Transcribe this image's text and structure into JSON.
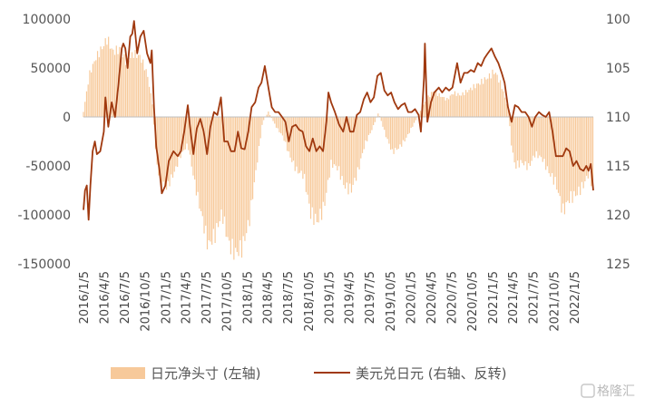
{
  "chart_data": {
    "type": "bar+line",
    "title": "",
    "legend": {
      "placement": "bottom",
      "items": [
        {
          "name": "日元净头寸 (左轴)",
          "kind": "bar",
          "color": "#F7C99A"
        },
        {
          "name": "美元兑日元 (右轴、反转)",
          "kind": "line",
          "color": "#A0390F"
        }
      ]
    },
    "left_axis": {
      "range": [
        -150000,
        100000
      ],
      "ticks": [
        100000,
        50000,
        0,
        -50000,
        -100000,
        -150000
      ],
      "tick_labels": [
        "100000",
        "50000",
        "0",
        "-50000",
        "-100000",
        "-150000"
      ]
    },
    "right_axis": {
      "inverted": true,
      "range": [
        100,
        125
      ],
      "ticks": [
        100,
        105,
        110,
        115,
        120,
        125
      ],
      "tick_labels": [
        "100",
        "105",
        "110",
        "115",
        "120",
        "125"
      ]
    },
    "x_axis": {
      "start": "2016-01-05",
      "end": "2022-03-31",
      "tick_labels": [
        "2016/1/5",
        "2016/4/5",
        "2016/7/5",
        "2016/10/5",
        "2017/1/5",
        "2017/4/5",
        "2017/7/5",
        "2017/10/5",
        "2018/1/5",
        "2018/4/5",
        "2018/7/5",
        "2018/10/5",
        "2019/1/5",
        "2019/4/5",
        "2019/7/5",
        "2019/10/5",
        "2020/1/5",
        "2020/4/5",
        "2020/7/5",
        "2020/10/5",
        "2021/1/5",
        "2021/4/5",
        "2021/7/5",
        "2021/10/5",
        "2022/1/5"
      ]
    },
    "series": [
      {
        "name": "日元净头寸 (左轴)",
        "axis": "left",
        "kind": "bar",
        "points": [
          [
            "2016-01-05",
            5000
          ],
          [
            "2016-02-01",
            40000
          ],
          [
            "2016-03-01",
            55000
          ],
          [
            "2016-04-01",
            65000
          ],
          [
            "2016-04-20",
            72000
          ],
          [
            "2016-05-15",
            60000
          ],
          [
            "2016-06-15",
            62000
          ],
          [
            "2016-07-15",
            50000
          ],
          [
            "2016-08-15",
            58000
          ],
          [
            "2016-09-15",
            55000
          ],
          [
            "2016-10-15",
            40000
          ],
          [
            "2016-11-10",
            10000
          ],
          [
            "2016-11-25",
            -40000
          ],
          [
            "2016-12-15",
            -60000
          ],
          [
            "2017-01-10",
            -65000
          ],
          [
            "2017-02-15",
            -50000
          ],
          [
            "2017-03-15",
            -35000
          ],
          [
            "2017-04-15",
            -25000
          ],
          [
            "2017-05-15",
            -60000
          ],
          [
            "2017-06-15",
            -90000
          ],
          [
            "2017-07-15",
            -120000
          ],
          [
            "2017-08-15",
            -110000
          ],
          [
            "2017-09-15",
            -90000
          ],
          [
            "2017-10-15",
            -120000
          ],
          [
            "2017-11-15",
            -130000
          ],
          [
            "2017-12-15",
            -125000
          ],
          [
            "2018-01-15",
            -100000
          ],
          [
            "2018-02-15",
            -50000
          ],
          [
            "2018-03-15",
            -5000
          ],
          [
            "2018-04-10",
            5000
          ],
          [
            "2018-05-15",
            -10000
          ],
          [
            "2018-06-15",
            -20000
          ],
          [
            "2018-07-15",
            -40000
          ],
          [
            "2018-08-15",
            -55000
          ],
          [
            "2018-09-15",
            -60000
          ],
          [
            "2018-10-15",
            -100000
          ],
          [
            "2018-11-15",
            -110000
          ],
          [
            "2018-12-15",
            -95000
          ],
          [
            "2019-01-15",
            -50000
          ],
          [
            "2019-02-15",
            -55000
          ],
          [
            "2019-03-15",
            -75000
          ],
          [
            "2019-04-15",
            -80000
          ],
          [
            "2019-05-15",
            -60000
          ],
          [
            "2019-06-15",
            -30000
          ],
          [
            "2019-07-15",
            -15000
          ],
          [
            "2019-08-15",
            5000
          ],
          [
            "2019-09-15",
            -20000
          ],
          [
            "2019-10-15",
            -40000
          ],
          [
            "2019-11-15",
            -35000
          ],
          [
            "2019-12-15",
            -25000
          ],
          [
            "2020-01-15",
            -10000
          ],
          [
            "2020-02-15",
            5000
          ],
          [
            "2020-03-15",
            20000
          ],
          [
            "2020-04-15",
            30000
          ],
          [
            "2020-05-15",
            25000
          ],
          [
            "2020-06-15",
            20000
          ],
          [
            "2020-07-15",
            28000
          ],
          [
            "2020-08-15",
            25000
          ],
          [
            "2020-09-15",
            30000
          ],
          [
            "2020-10-15",
            35000
          ],
          [
            "2020-11-15",
            40000
          ],
          [
            "2020-12-15",
            45000
          ],
          [
            "2021-01-15",
            52000
          ],
          [
            "2021-02-15",
            35000
          ],
          [
            "2021-03-15",
            10000
          ],
          [
            "2021-03-30",
            -30000
          ],
          [
            "2021-04-15",
            -55000
          ],
          [
            "2021-05-15",
            -50000
          ],
          [
            "2021-06-15",
            -55000
          ],
          [
            "2021-07-15",
            -40000
          ],
          [
            "2021-08-15",
            -45000
          ],
          [
            "2021-09-15",
            -60000
          ],
          [
            "2021-10-15",
            -70000
          ],
          [
            "2021-11-15",
            -100000
          ],
          [
            "2021-12-15",
            -85000
          ],
          [
            "2022-01-15",
            -80000
          ],
          [
            "2022-02-15",
            -70000
          ],
          [
            "2022-03-15",
            -55000
          ],
          [
            "2022-03-31",
            -80000
          ]
        ]
      },
      {
        "name": "美元兑日元 (右轴、反转)",
        "axis": "right",
        "kind": "line",
        "points": [
          [
            "2016-01-05",
            119.5
          ],
          [
            "2016-01-12",
            117.5
          ],
          [
            "2016-01-20",
            117
          ],
          [
            "2016-01-28",
            120.5
          ],
          [
            "2016-02-05",
            117.0
          ],
          [
            "2016-02-15",
            113.5
          ],
          [
            "2016-02-25",
            112.5
          ],
          [
            "2016-03-05",
            113.8
          ],
          [
            "2016-03-20",
            113.5
          ],
          [
            "2016-04-05",
            111.5
          ],
          [
            "2016-04-12",
            108
          ],
          [
            "2016-04-25",
            111
          ],
          [
            "2016-05-10",
            108.5
          ],
          [
            "2016-05-25",
            110
          ],
          [
            "2016-06-10",
            106.5
          ],
          [
            "2016-06-24",
            103
          ],
          [
            "2016-07-01",
            102.5
          ],
          [
            "2016-07-10",
            103
          ],
          [
            "2016-07-20",
            105
          ],
          [
            "2016-08-01",
            101.8
          ],
          [
            "2016-08-10",
            101.5
          ],
          [
            "2016-08-18",
            100.2
          ],
          [
            "2016-09-01",
            103.5
          ],
          [
            "2016-09-15",
            101.8
          ],
          [
            "2016-09-30",
            101.2
          ],
          [
            "2016-10-15",
            103.5
          ],
          [
            "2016-10-30",
            104.5
          ],
          [
            "2016-11-05",
            103.2
          ],
          [
            "2016-11-15",
            109
          ],
          [
            "2016-11-25",
            113.0
          ],
          [
            "2016-12-10",
            115.5
          ],
          [
            "2016-12-20",
            117.8
          ],
          [
            "2017-01-05",
            117.0
          ],
          [
            "2017-01-20",
            114.5
          ],
          [
            "2017-02-10",
            113.5
          ],
          [
            "2017-03-01",
            114.0
          ],
          [
            "2017-03-15",
            113.5
          ],
          [
            "2017-03-30",
            111.5
          ],
          [
            "2017-04-15",
            108.8
          ],
          [
            "2017-04-25",
            111.0
          ],
          [
            "2017-05-10",
            113.8
          ],
          [
            "2017-05-25",
            111.2
          ],
          [
            "2017-06-10",
            110.2
          ],
          [
            "2017-06-25",
            111.5
          ],
          [
            "2017-07-10",
            113.8
          ],
          [
            "2017-07-25",
            111.0
          ],
          [
            "2017-08-10",
            109.5
          ],
          [
            "2017-08-25",
            109.8
          ],
          [
            "2017-09-10",
            108.0
          ],
          [
            "2017-09-25",
            112.5
          ],
          [
            "2017-10-10",
            112.5
          ],
          [
            "2017-10-25",
            113.5
          ],
          [
            "2017-11-10",
            113.5
          ],
          [
            "2017-11-25",
            111.5
          ],
          [
            "2017-12-10",
            113.2
          ],
          [
            "2017-12-25",
            113.3
          ],
          [
            "2018-01-10",
            111.5
          ],
          [
            "2018-01-25",
            109.0
          ],
          [
            "2018-02-10",
            108.5
          ],
          [
            "2018-02-25",
            107.0
          ],
          [
            "2018-03-10",
            106.5
          ],
          [
            "2018-03-25",
            104.8
          ],
          [
            "2018-04-10",
            107.0
          ],
          [
            "2018-04-25",
            109.0
          ],
          [
            "2018-05-10",
            109.5
          ],
          [
            "2018-05-25",
            109.5
          ],
          [
            "2018-06-10",
            110.0
          ],
          [
            "2018-06-25",
            110.5
          ],
          [
            "2018-07-10",
            112.5
          ],
          [
            "2018-07-25",
            111.0
          ],
          [
            "2018-08-10",
            110.8
          ],
          [
            "2018-08-25",
            111.3
          ],
          [
            "2018-09-10",
            111.5
          ],
          [
            "2018-09-25",
            113.0
          ],
          [
            "2018-10-10",
            113.5
          ],
          [
            "2018-10-25",
            112.2
          ],
          [
            "2018-11-10",
            113.5
          ],
          [
            "2018-11-25",
            113.0
          ],
          [
            "2018-12-10",
            113.5
          ],
          [
            "2018-12-25",
            110.5
          ],
          [
            "2019-01-03",
            107.5
          ],
          [
            "2019-01-15",
            108.5
          ],
          [
            "2019-02-01",
            109.5
          ],
          [
            "2019-02-20",
            110.8
          ],
          [
            "2019-03-10",
            111.5
          ],
          [
            "2019-03-25",
            110.0
          ],
          [
            "2019-04-10",
            111.5
          ],
          [
            "2019-04-25",
            111.5
          ],
          [
            "2019-05-10",
            109.8
          ],
          [
            "2019-05-25",
            109.5
          ],
          [
            "2019-06-10",
            108.2
          ],
          [
            "2019-06-25",
            107.5
          ],
          [
            "2019-07-10",
            108.5
          ],
          [
            "2019-07-25",
            108.0
          ],
          [
            "2019-08-10",
            105.8
          ],
          [
            "2019-08-25",
            105.5
          ],
          [
            "2019-09-10",
            107.3
          ],
          [
            "2019-09-25",
            107.8
          ],
          [
            "2019-10-10",
            107.5
          ],
          [
            "2019-10-25",
            108.5
          ],
          [
            "2019-11-10",
            109.2
          ],
          [
            "2019-11-25",
            108.8
          ],
          [
            "2019-12-10",
            108.6
          ],
          [
            "2019-12-25",
            109.5
          ],
          [
            "2020-01-10",
            109.5
          ],
          [
            "2020-01-25",
            109.2
          ],
          [
            "2020-02-10",
            109.8
          ],
          [
            "2020-02-20",
            111.5
          ],
          [
            "2020-03-05",
            106.0
          ],
          [
            "2020-03-09",
            102.5
          ],
          [
            "2020-03-20",
            110.5
          ],
          [
            "2020-04-05",
            108.5
          ],
          [
            "2020-04-20",
            107.5
          ],
          [
            "2020-05-10",
            107.0
          ],
          [
            "2020-05-25",
            107.5
          ],
          [
            "2020-06-10",
            107.0
          ],
          [
            "2020-06-25",
            107.3
          ],
          [
            "2020-07-10",
            107.0
          ],
          [
            "2020-07-31",
            104.5
          ],
          [
            "2020-08-15",
            106.5
          ],
          [
            "2020-08-31",
            105.5
          ],
          [
            "2020-09-15",
            105.5
          ],
          [
            "2020-09-30",
            105.2
          ],
          [
            "2020-10-15",
            105.4
          ],
          [
            "2020-10-31",
            104.5
          ],
          [
            "2020-11-15",
            104.8
          ],
          [
            "2020-11-30",
            104.0
          ],
          [
            "2020-12-15",
            103.5
          ],
          [
            "2020-12-31",
            103.0
          ],
          [
            "2021-01-15",
            103.8
          ],
          [
            "2021-01-31",
            104.5
          ],
          [
            "2021-02-15",
            105.5
          ],
          [
            "2021-02-28",
            106.5
          ],
          [
            "2021-03-15",
            109.0
          ],
          [
            "2021-03-31",
            110.5
          ],
          [
            "2021-04-15",
            108.8
          ],
          [
            "2021-04-30",
            109.0
          ],
          [
            "2021-05-15",
            109.5
          ],
          [
            "2021-05-31",
            109.5
          ],
          [
            "2021-06-15",
            110.0
          ],
          [
            "2021-06-30",
            111.0
          ],
          [
            "2021-07-15",
            110.0
          ],
          [
            "2021-07-31",
            109.5
          ],
          [
            "2021-08-15",
            109.8
          ],
          [
            "2021-08-31",
            110.0
          ],
          [
            "2021-09-15",
            109.5
          ],
          [
            "2021-09-30",
            111.5
          ],
          [
            "2021-10-15",
            114.0
          ],
          [
            "2021-10-31",
            114.0
          ],
          [
            "2021-11-15",
            114.0
          ],
          [
            "2021-11-30",
            113.2
          ],
          [
            "2021-12-15",
            113.5
          ],
          [
            "2021-12-31",
            115.0
          ],
          [
            "2022-01-15",
            114.5
          ],
          [
            "2022-01-31",
            115.3
          ],
          [
            "2022-02-15",
            115.5
          ],
          [
            "2022-02-28",
            115.0
          ],
          [
            "2022-03-10",
            115.5
          ],
          [
            "2022-03-20",
            114.8
          ],
          [
            "2022-03-31",
            117.5
          ]
        ]
      }
    ]
  },
  "watermark": "格隆汇"
}
